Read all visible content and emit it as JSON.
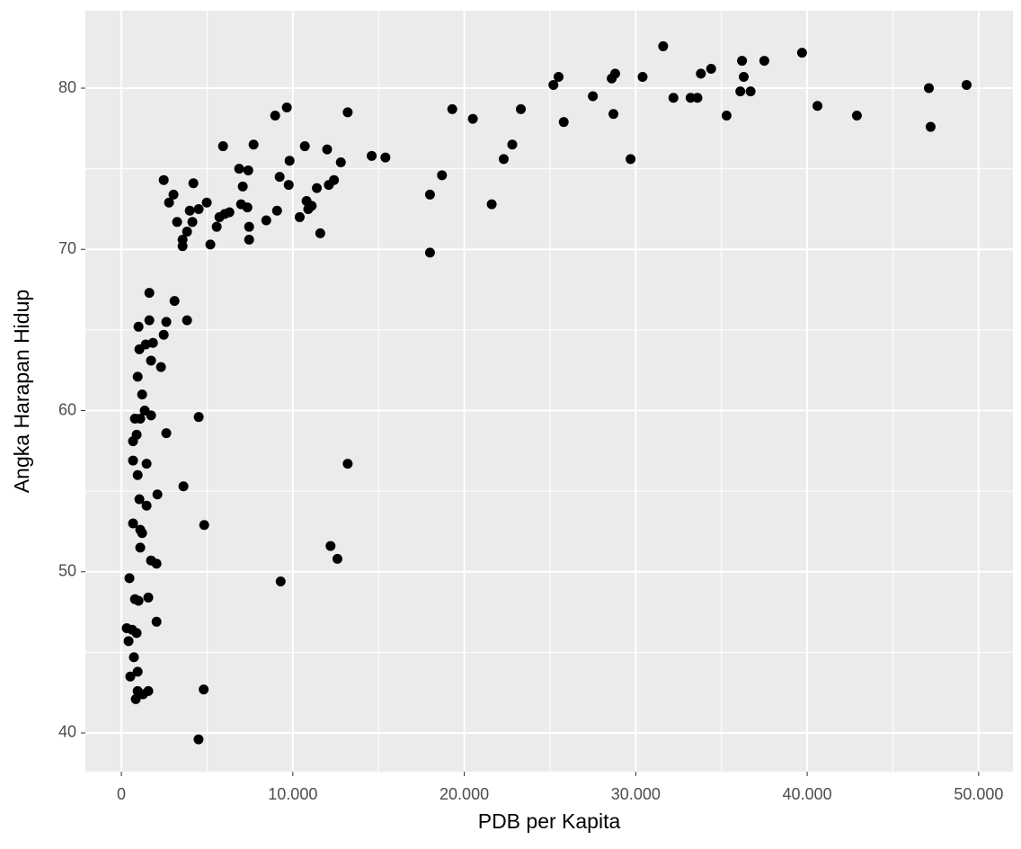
{
  "chart_data": {
    "type": "scatter",
    "x_label": "PDB per Kapita",
    "y_label": "Angka Harapan Hidup",
    "x": [
      4500,
      4800,
      840,
      950,
      1260,
      1570,
      520,
      950,
      730,
      420,
      310,
      630,
      890,
      2050,
      790,
      1000,
      1570,
      470,
      9290,
      1730,
      2050,
      12600,
      12200,
      1100,
      1210,
      1100,
      680,
      4830,
      1050,
      1470,
      2100,
      3620,
      13200,
      950,
      680,
      1470,
      680,
      890,
      2620,
      790,
      1100,
      1730,
      4510,
      1360,
      1210,
      950,
      1730,
      2310,
      1050,
      1420,
      1840,
      2470,
      1000,
      1630,
      2620,
      3830,
      3100,
      1630,
      18000,
      3570,
      5190,
      3570,
      7450,
      11600,
      3830,
      5560,
      7450,
      3250,
      4140,
      5720,
      8450,
      10400,
      6030,
      6300,
      3990,
      4510,
      9080,
      7350,
      10900,
      21600,
      2780,
      4980,
      6980,
      10800,
      11100,
      3040,
      18000,
      11400,
      7080,
      4200,
      12100,
      12400,
      9760,
      2470,
      9230,
      18700,
      7400,
      6870,
      12800,
      9810,
      15400,
      14600,
      22300,
      29700,
      22800,
      5930,
      7710,
      10700,
      12000,
      47200,
      25800,
      20500,
      42900,
      35300,
      28700,
      8970,
      13200,
      23300,
      19300,
      9650,
      40600,
      32200,
      33200,
      33600,
      27500,
      36700,
      36100,
      47100,
      49300,
      25200,
      28600,
      30400,
      36300,
      25500,
      28800,
      33800,
      34400,
      37500,
      36200,
      39700,
      31600
    ],
    "y": [
      39.6,
      42.7,
      42.1,
      42.6,
      42.4,
      42.6,
      43.5,
      43.8,
      44.7,
      45.7,
      46.5,
      46.4,
      46.2,
      46.9,
      48.3,
      48.2,
      48.4,
      49.6,
      49.4,
      50.7,
      50.5,
      50.8,
      51.6,
      51.5,
      52.4,
      52.6,
      53.0,
      52.9,
      54.5,
      54.1,
      54.8,
      55.3,
      56.7,
      56.0,
      56.9,
      56.7,
      58.1,
      58.5,
      58.6,
      59.5,
      59.5,
      59.7,
      59.6,
      60.0,
      61.0,
      62.1,
      63.1,
      62.7,
      63.8,
      64.1,
      64.2,
      64.7,
      65.2,
      65.6,
      65.5,
      65.6,
      66.8,
      67.3,
      69.8,
      70.2,
      70.3,
      70.6,
      70.6,
      71.0,
      71.1,
      71.4,
      71.4,
      71.7,
      71.7,
      72.0,
      71.8,
      72.0,
      72.2,
      72.3,
      72.4,
      72.5,
      72.4,
      72.6,
      72.5,
      72.8,
      72.9,
      72.9,
      72.8,
      73.0,
      72.7,
      73.4,
      73.4,
      73.8,
      73.9,
      74.1,
      74.0,
      74.3,
      74.0,
      74.3,
      74.5,
      74.6,
      74.9,
      75.0,
      75.4,
      75.5,
      75.7,
      75.8,
      75.6,
      75.6,
      76.5,
      76.4,
      76.5,
      76.4,
      76.2,
      77.6,
      77.9,
      78.1,
      78.3,
      78.3,
      78.4,
      78.3,
      78.5,
      78.7,
      78.7,
      78.8,
      78.9,
      79.4,
      79.4,
      79.4,
      79.5,
      79.8,
      79.8,
      80.0,
      80.2,
      80.2,
      80.6,
      80.7,
      80.7,
      80.7,
      80.9,
      80.9,
      81.2,
      81.7,
      81.7,
      82.2,
      82.6
    ],
    "color": "#000000",
    "xlim": [
      -2100,
      52000
    ],
    "ylim": [
      37.6,
      84.8
    ],
    "xticks": [
      0,
      {
        "value": 10000,
        "label": "10.000"
      },
      {
        "value": 20000,
        "label": "20.000"
      },
      {
        "value": 30000,
        "label": "30.000"
      },
      {
        "value": 40000,
        "label": "40.000"
      },
      {
        "value": 50000,
        "label": "50.000"
      }
    ],
    "yticks": [
      40,
      50,
      60,
      70,
      80
    ],
    "grid": true,
    "minor_grid": true
  }
}
